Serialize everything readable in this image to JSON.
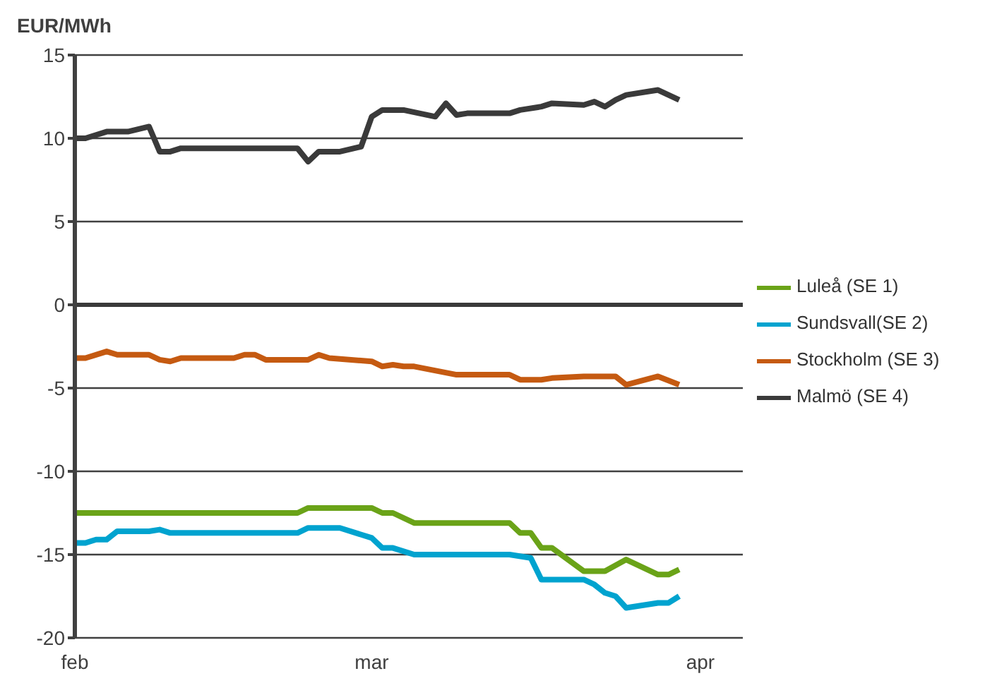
{
  "chart_data": {
    "type": "line",
    "ylabel": "EUR/MWh",
    "xlim": [
      "--02-01",
      "--04-05"
    ],
    "xticks": [
      {
        "value": "--02-01",
        "label": "feb"
      },
      {
        "value": "--03-01",
        "label": "mar"
      },
      {
        "value": "--04-01",
        "label": "apr"
      }
    ],
    "ylim": [
      -20,
      15
    ],
    "yticks": [
      -20,
      -15,
      -10,
      -5,
      0,
      5,
      10,
      15
    ],
    "grid": "y",
    "legend": "right",
    "marker": "none",
    "line_style": "solid",
    "ref_lines": [
      {
        "axis": "y",
        "value": 0,
        "color": "#3a3a3a"
      }
    ],
    "series": [
      {
        "name": "Luleå (SE 1)",
        "color": "#6aa318",
        "x": [
          "--02-01",
          "--02-22",
          "--02-23",
          "--03-01",
          "--03-02",
          "--03-03",
          "--03-05",
          "--03-14",
          "--03-15",
          "--03-16",
          "--03-17",
          "--03-18",
          "--03-21",
          "--03-23",
          "--03-25",
          "--03-28",
          "--03-29",
          "--03-30"
        ],
        "values": [
          -12.5,
          -12.5,
          -12.2,
          -12.2,
          -12.5,
          -12.5,
          -13.1,
          -13.1,
          -13.7,
          -13.7,
          -14.6,
          -14.6,
          -16.0,
          -16.0,
          -15.3,
          -16.2,
          -16.2,
          -15.9
        ]
      },
      {
        "name": "Sundsvall(SE 2)",
        "color": "#00a3cf",
        "x": [
          "--02-01",
          "--02-02",
          "--02-03",
          "--02-04",
          "--02-05",
          "--02-08",
          "--02-09",
          "--02-10",
          "--02-22",
          "--02-23",
          "--02-26",
          "--03-01",
          "--03-02",
          "--03-03",
          "--03-05",
          "--03-14",
          "--03-16",
          "--03-17",
          "--03-21",
          "--03-22",
          "--03-23",
          "--03-24",
          "--03-25",
          "--03-28",
          "--03-29",
          "--03-30"
        ],
        "values": [
          -14.3,
          -14.3,
          -14.1,
          -14.1,
          -13.6,
          -13.6,
          -13.5,
          -13.7,
          -13.7,
          -13.4,
          -13.4,
          -14.0,
          -14.6,
          -14.6,
          -15.0,
          -15.0,
          -15.2,
          -16.5,
          -16.5,
          -16.8,
          -17.3,
          -17.5,
          -18.2,
          -17.9,
          -17.9,
          -17.5
        ]
      },
      {
        "name": "Stockholm (SE 3)",
        "color": "#c55a11",
        "x": [
          "--02-01",
          "--02-02",
          "--02-04",
          "--02-05",
          "--02-08",
          "--02-09",
          "--02-10",
          "--02-11",
          "--02-16",
          "--02-17",
          "--02-18",
          "--02-19",
          "--02-23",
          "--02-24",
          "--02-25",
          "--03-01",
          "--03-02",
          "--03-03",
          "--03-04",
          "--03-05",
          "--03-09",
          "--03-14",
          "--03-15",
          "--03-17",
          "--03-18",
          "--03-21",
          "--03-24",
          "--03-25",
          "--03-28",
          "--03-30"
        ],
        "values": [
          -3.2,
          -3.2,
          -2.8,
          -3.0,
          -3.0,
          -3.3,
          -3.4,
          -3.2,
          -3.2,
          -3.0,
          -3.0,
          -3.3,
          -3.3,
          -3.0,
          -3.2,
          -3.4,
          -3.7,
          -3.6,
          -3.7,
          -3.7,
          -4.2,
          -4.2,
          -4.5,
          -4.5,
          -4.4,
          -4.3,
          -4.3,
          -4.8,
          -4.3,
          -4.8
        ]
      },
      {
        "name": "Malmö (SE 4)",
        "color": "#3a3a3a",
        "x": [
          "--02-01",
          "--02-02",
          "--02-04",
          "--02-06",
          "--02-08",
          "--02-09",
          "--02-10",
          "--02-11",
          "--02-22",
          "--02-23",
          "--02-24",
          "--02-26",
          "--02-28",
          "--03-01",
          "--03-02",
          "--03-04",
          "--03-07",
          "--03-08",
          "--03-09",
          "--03-10",
          "--03-14",
          "--03-15",
          "--03-17",
          "--03-18",
          "--03-21",
          "--03-22",
          "--03-23",
          "--03-24",
          "--03-25",
          "--03-28",
          "--03-29",
          "--03-30"
        ],
        "values": [
          10.0,
          10.0,
          10.4,
          10.4,
          10.7,
          9.2,
          9.2,
          9.4,
          9.4,
          8.6,
          9.2,
          9.2,
          9.5,
          11.3,
          11.7,
          11.7,
          11.3,
          12.1,
          11.4,
          11.5,
          11.5,
          11.7,
          11.9,
          12.1,
          12.0,
          12.2,
          11.9,
          12.3,
          12.6,
          12.9,
          12.6,
          12.3
        ]
      }
    ]
  }
}
